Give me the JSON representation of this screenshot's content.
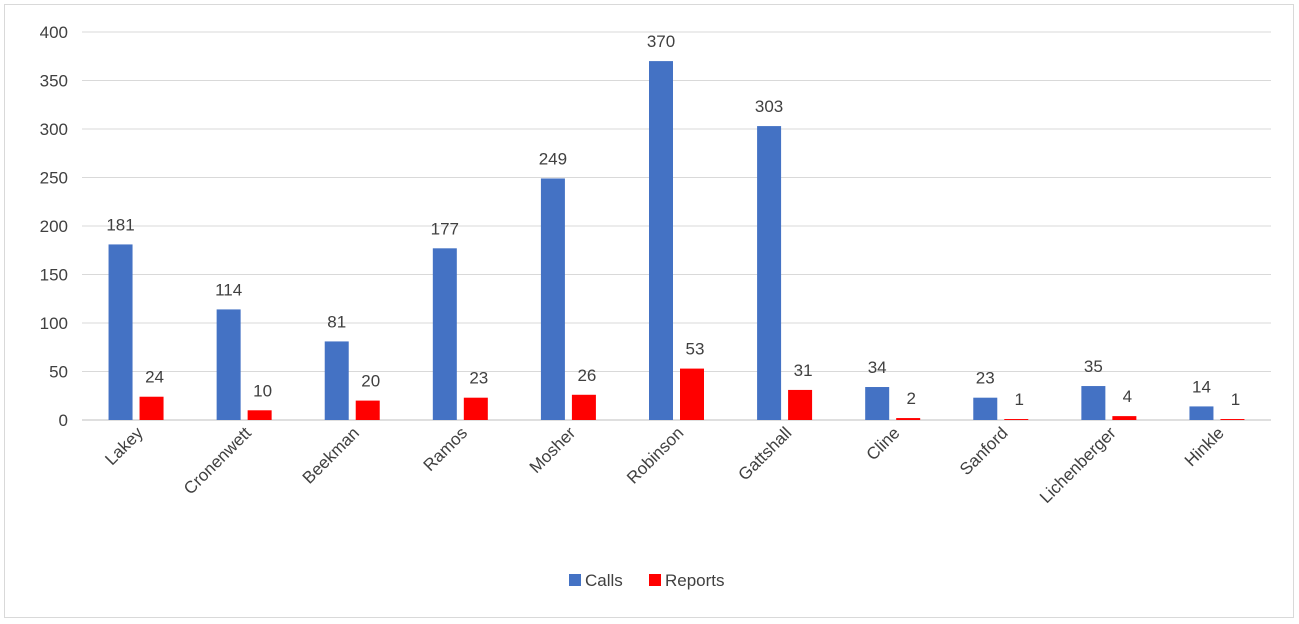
{
  "chart_data": {
    "type": "bar",
    "categories": [
      "Lakey",
      "Cronenwett",
      "Beekman",
      "Ramos",
      "Mosher",
      "Robinson",
      "Gattshall",
      "Cline",
      "Sanford",
      "Lichenberger",
      "Hinkle"
    ],
    "series": [
      {
        "name": "Calls",
        "color": "#4472c4",
        "values": [
          181,
          114,
          81,
          177,
          249,
          370,
          303,
          34,
          23,
          35,
          14
        ]
      },
      {
        "name": "Reports",
        "color": "#ff0000",
        "values": [
          24,
          10,
          20,
          23,
          26,
          53,
          31,
          2,
          1,
          4,
          1
        ]
      }
    ],
    "title": "",
    "xlabel": "",
    "ylabel": "",
    "ylim": [
      0,
      400
    ],
    "yticks": [
      0,
      50,
      100,
      150,
      200,
      250,
      300,
      350,
      400
    ],
    "grid": true,
    "legend_position": "bottom",
    "data_labels": true
  }
}
